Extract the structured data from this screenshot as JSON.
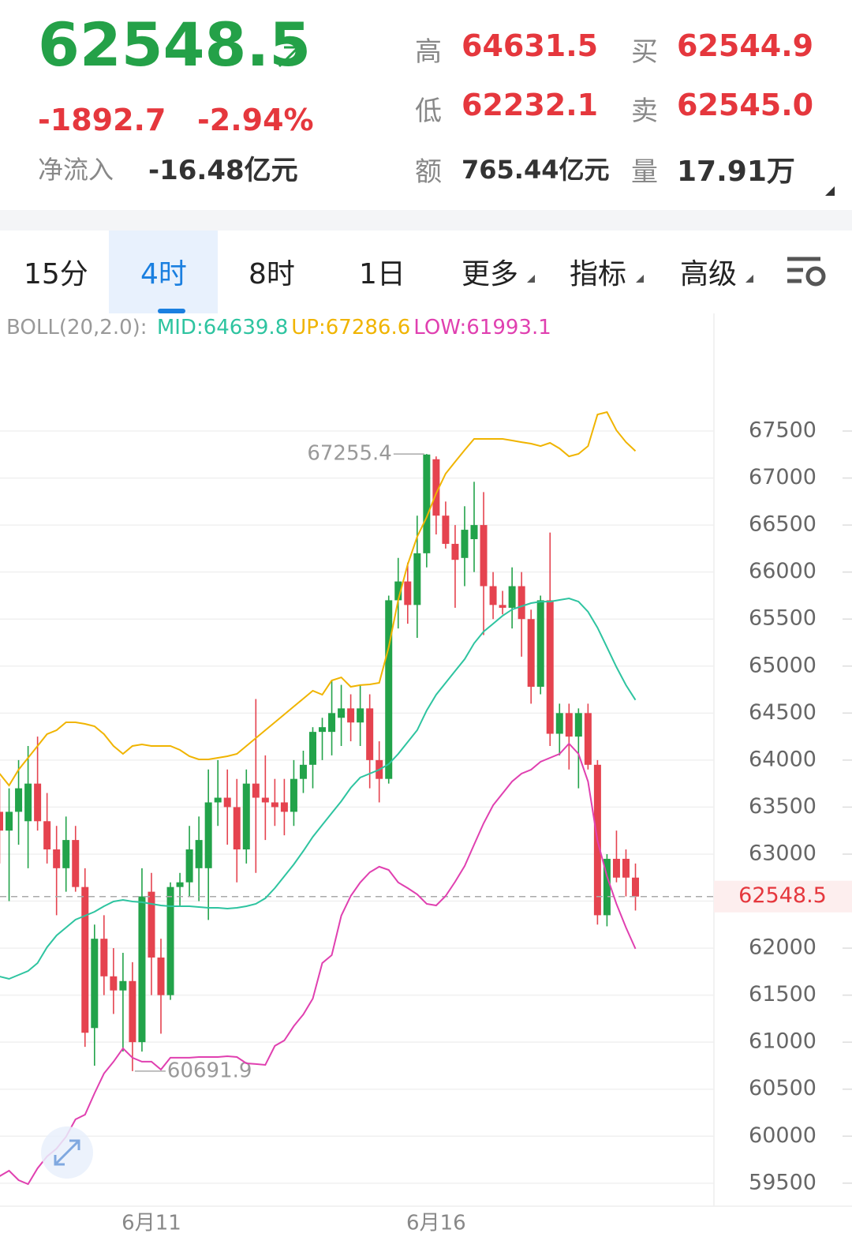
{
  "header": {
    "price": "62548.5",
    "change": "-1892.7",
    "change_pct": "-2.94%",
    "inflow_label": "净流入",
    "inflow": "-16.48亿元",
    "stats": [
      {
        "label": "高",
        "value": "64631.5"
      },
      {
        "label": "买",
        "value": "62544.9"
      },
      {
        "label": "低",
        "value": "62232.1"
      },
      {
        "label": "卖",
        "value": "62545.0"
      },
      {
        "label": "额",
        "value": "765.44亿元"
      },
      {
        "label": "量",
        "value": "17.91万"
      }
    ]
  },
  "tabs": [
    "15分",
    "4时",
    "8时",
    "1日",
    "更多",
    "指标",
    "高级"
  ],
  "chart_data": {
    "type": "candlestick",
    "indicator": "BOLL(20,2.0):",
    "separator": ":",
    "categories": [
      null,
      null,
      null,
      null,
      null,
      null,
      null,
      null,
      null,
      null,
      null,
      null,
      null,
      null,
      null,
      null,
      "6月11",
      null,
      null,
      null,
      null,
      null,
      null,
      null,
      null,
      null,
      null,
      null,
      null,
      null,
      null,
      null,
      null,
      null,
      null,
      null,
      null,
      null,
      null,
      null,
      null,
      null,
      null,
      null,
      null,
      null,
      "6月16",
      null,
      null,
      null,
      null,
      null,
      null,
      null,
      null,
      null,
      null,
      null,
      null,
      null,
      null,
      null,
      null,
      null,
      null,
      null,
      null,
      null
    ],
    "ohlc": {
      "open": [
        63450,
        63250,
        63450,
        63350,
        63750,
        63350,
        63050,
        62850,
        63150,
        62650,
        61150,
        62100,
        61700,
        61550,
        61650,
        61000,
        62600,
        61900,
        61500,
        62650,
        62700,
        62850,
        62850,
        63550,
        63600,
        63500,
        63050,
        63750,
        63600,
        63550,
        63550,
        63450,
        63800,
        63950,
        64300,
        64300,
        64450,
        64550,
        64400,
        64550,
        64000,
        63800,
        65700,
        65900,
        65650,
        66200,
        67200,
        66600,
        66300,
        66150,
        66350,
        66500,
        65850,
        65650,
        65620,
        65850,
        65500,
        64780,
        65700,
        64280,
        64500,
        64250,
        64500,
        63950,
        62350,
        62950,
        62950,
        62750
      ],
      "high": [
        63800,
        63700,
        64000,
        64150,
        64250,
        63650,
        63300,
        63400,
        63300,
        62850,
        62250,
        62350,
        62000,
        61950,
        61850,
        62850,
        62800,
        62100,
        62700,
        62800,
        63300,
        63400,
        63900,
        64000,
        63900,
        63800,
        63900,
        64650,
        64050,
        63800,
        63800,
        64000,
        64100,
        64350,
        64450,
        64850,
        64800,
        64700,
        64800,
        64700,
        64200,
        65750,
        66150,
        66100,
        66600,
        67255.4,
        67230,
        66750,
        66500,
        66700,
        66960,
        66850,
        66000,
        65800,
        66050,
        66000,
        65600,
        65750,
        66420,
        64600,
        64600,
        64550,
        64600,
        64000,
        63000,
        63250,
        63050,
        62900
      ],
      "low": [
        62900,
        62500,
        63100,
        62850,
        63250,
        62900,
        62350,
        62600,
        62600,
        60950,
        60750,
        61500,
        61300,
        60900,
        60691.9,
        60900,
        61500,
        61090,
        61450,
        62450,
        62550,
        62500,
        62300,
        63300,
        63100,
        62700,
        62900,
        62800,
        63150,
        63300,
        63200,
        63300,
        63650,
        63700,
        64000,
        64050,
        64150,
        64200,
        64150,
        63700,
        63550,
        63750,
        65400,
        65450,
        65300,
        66050,
        66400,
        66250,
        65620,
        65850,
        66000,
        65330,
        65500,
        65550,
        65400,
        65100,
        64600,
        64700,
        64150,
        64050,
        63900,
        63700,
        63900,
        62250,
        62232.1,
        62700,
        62550,
        62400
      ],
      "close": [
        63250,
        63450,
        63700,
        63750,
        63350,
        63050,
        62850,
        63150,
        62650,
        61100,
        62100,
        61700,
        61550,
        61650,
        61000,
        62550,
        61900,
        61500,
        62650,
        62700,
        63050,
        63150,
        63550,
        63600,
        63500,
        63050,
        63750,
        63600,
        63550,
        63500,
        63450,
        63800,
        63950,
        64300,
        64350,
        64500,
        64550,
        64400,
        64550,
        64000,
        63800,
        65700,
        65900,
        65650,
        66200,
        67250,
        66600,
        66300,
        66130,
        66450,
        66500,
        65850,
        65650,
        65620,
        65850,
        65500,
        64780,
        65700,
        64280,
        64500,
        64250,
        64500,
        63950,
        62350,
        62950,
        62750,
        62750,
        62548.5
      ]
    },
    "up_color": "#22a34a",
    "down_color": "#e5434f",
    "series": [
      {
        "name": "MID",
        "color": "#2ec4a0",
        "values": [
          61698,
          61673,
          61715,
          61757,
          61841,
          62009,
          62135,
          62219,
          62303,
          62345,
          62387,
          62446,
          62496,
          62513,
          62496,
          62488,
          62471,
          62454,
          62446,
          62446,
          62446,
          62437,
          62429,
          62429,
          62420,
          62429,
          62446,
          62471,
          62530,
          62639,
          62765,
          62891,
          63033,
          63184,
          63310,
          63436,
          63562,
          63705,
          63814,
          63856,
          63898,
          63957,
          64066,
          64192,
          64318,
          64528,
          64696,
          64822,
          64948,
          65074,
          65242,
          65367,
          65451,
          65535,
          65602,
          65636,
          65670,
          65686,
          65686,
          65703,
          65720,
          65686,
          65577,
          65409,
          65200,
          64990,
          64797,
          64639.8
        ]
      },
      {
        "name": "UP",
        "color": "#f0b400",
        "values": [
          63856,
          63730,
          63898,
          64024,
          64150,
          64276,
          64318,
          64402,
          64402,
          64385,
          64360,
          64276,
          64150,
          64066,
          64150,
          64167,
          64150,
          64150,
          64150,
          64108,
          64041,
          64007,
          64007,
          64024,
          64041,
          64066,
          64150,
          64234,
          64318,
          64402,
          64486,
          64570,
          64654,
          64738,
          64696,
          64847,
          64880,
          64780,
          64797,
          64805,
          64822,
          65200,
          65703,
          66081,
          66375,
          66585,
          66837,
          67047,
          67173,
          67298,
          67416,
          67416,
          67416,
          67416,
          67399,
          67382,
          67366,
          67340,
          67374,
          67315,
          67231,
          67257,
          67340,
          67676,
          67702,
          67508,
          67382,
          67286.6
        ]
      },
      {
        "name": "LOW",
        "color": "#e040b0",
        "values": [
          59574,
          59633,
          59532,
          59490,
          59658,
          59784,
          59868,
          59994,
          60179,
          60229,
          60456,
          60666,
          60792,
          60934,
          60834,
          60792,
          60792,
          60708,
          60834,
          60834,
          60834,
          60842,
          60842,
          60842,
          60850,
          60842,
          60775,
          60767,
          60758,
          60960,
          61018,
          61170,
          61295,
          61463,
          61841,
          61925,
          62345,
          62555,
          62698,
          62807,
          62866,
          62832,
          62698,
          62639,
          62572,
          62471,
          62454,
          62555,
          62706,
          62874,
          63101,
          63327,
          63520,
          63646,
          63772,
          63856,
          63898,
          63982,
          64024,
          64066,
          64175,
          64066,
          63772,
          63142,
          62765,
          62471,
          62219,
          61993.1
        ]
      }
    ],
    "ylim": [
      59255,
      68726
    ],
    "yticks": [
      59500,
      60000,
      60500,
      61000,
      61500,
      62000,
      62500,
      63000,
      63500,
      64000,
      64500,
      65000,
      65500,
      66000,
      66500,
      67000,
      67500
    ],
    "grid": true
  }
}
